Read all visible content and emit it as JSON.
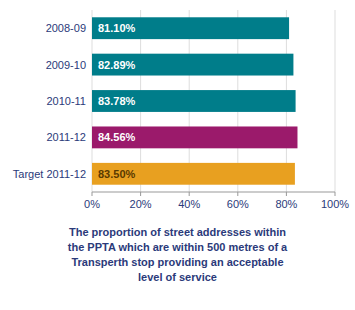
{
  "chart_data": {
    "type": "bar",
    "orientation": "horizontal",
    "categories": [
      "2008-09",
      "2009-10",
      "2010-11",
      "2011-12",
      "Target 2011-12"
    ],
    "values": [
      81.1,
      82.89,
      83.78,
      84.56,
      83.5
    ],
    "value_labels": [
      "81.10%",
      "82.89%",
      "83.78%",
      "84.56%",
      "83.50%"
    ],
    "data_labels": true,
    "colors": [
      "#007d8a",
      "#007d8a",
      "#007d8a",
      "#9b1a6b",
      "#e8a020"
    ],
    "xlim": [
      0,
      100
    ],
    "xticks": [
      {
        "value": 0,
        "label": "0%"
      },
      {
        "value": 20,
        "label": "20%"
      },
      {
        "value": 40,
        "label": "40%"
      },
      {
        "value": 60,
        "label": "60%"
      },
      {
        "value": 80,
        "label": "80%"
      },
      {
        "value": 100,
        "label": "100%"
      }
    ],
    "grid": true,
    "annotations": [
      "The proportion of street addresses within\nthe PPTA which are within 500 metres of a\nTransperth stop providing an acceptable\nlevel of service"
    ]
  }
}
